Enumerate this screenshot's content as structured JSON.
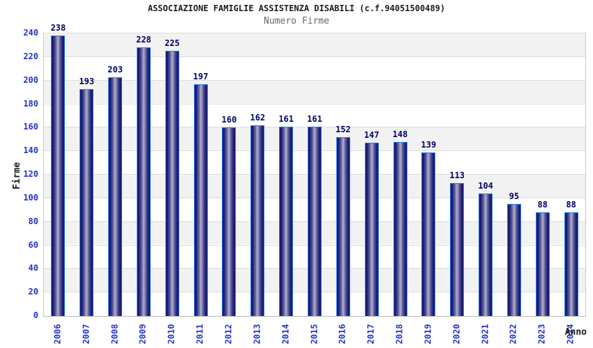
{
  "chart_data": {
    "type": "bar",
    "title": "ASSOCIAZIONE FAMIGLIE ASSISTENZA DISABILI (c.f.94051500489)",
    "subtitle": "Numero Firme",
    "xlabel": "Anno",
    "ylabel": "Firme",
    "categories": [
      "2006",
      "2007",
      "2008",
      "2009",
      "2010",
      "2011",
      "2012",
      "2013",
      "2014",
      "2015",
      "2016",
      "2017",
      "2018",
      "2019",
      "2020",
      "2021",
      "2022",
      "2023",
      "2024"
    ],
    "values": [
      238,
      193,
      203,
      228,
      225,
      197,
      160,
      162,
      161,
      161,
      152,
      147,
      148,
      139,
      113,
      104,
      95,
      88,
      88
    ],
    "ylim": [
      0,
      240
    ],
    "ytick_step": 20,
    "grid": true,
    "legend_position": "none",
    "bar_value_labels_shown": true,
    "colors": {
      "bar_outline": "#2e7ff0",
      "bar_gradient_dark": "#15156e",
      "bar_gradient_light": "#b2b2d8",
      "tick_label": "#2233cc",
      "value_label": "#000066",
      "title": "#1c1c1c",
      "subtitle": "#666666",
      "band": "#f2f2f2",
      "gridline": "#dcdcdc",
      "axis_border": "#c8c8c8"
    }
  }
}
